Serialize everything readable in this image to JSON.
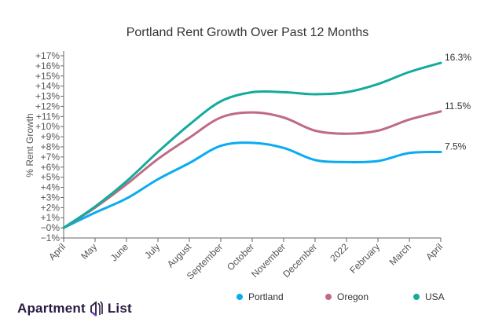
{
  "chart_data": {
    "type": "line",
    "title": "Portland Rent Growth Over Past 12 Months",
    "ylabel": "% Rent Growth",
    "xlabel": "",
    "categories": [
      "April",
      "May",
      "June",
      "July",
      "August",
      "September",
      "October",
      "November",
      "December",
      "2022",
      "February",
      "March",
      "April"
    ],
    "ylim": [
      -1,
      17
    ],
    "yticks": [
      "−1%",
      "−0%",
      "+1%",
      "+2%",
      "+3%",
      "+4%",
      "+5%",
      "+6%",
      "+7%",
      "+8%",
      "+9%",
      "+10%",
      "+11%",
      "+12%",
      "+13%",
      "+14%",
      "+15%",
      "+16%",
      "+17%"
    ],
    "grid": false,
    "legend_position": "bottom",
    "series": [
      {
        "name": "Portland",
        "color": "#0aabf0",
        "values": [
          0,
          1.5,
          2.9,
          4.8,
          6.4,
          8.1,
          8.4,
          7.9,
          6.7,
          6.5,
          6.6,
          7.4,
          7.5
        ],
        "end_label": "7.5%"
      },
      {
        "name": "Oregon",
        "color": "#c06a85",
        "values": [
          0,
          2.0,
          4.3,
          6.8,
          8.9,
          10.9,
          11.4,
          10.9,
          9.6,
          9.3,
          9.6,
          10.7,
          11.5
        ],
        "end_label": "11.5%"
      },
      {
        "name": "USA",
        "color": "#13ab9c",
        "values": [
          0,
          2.1,
          4.6,
          7.5,
          10.2,
          12.5,
          13.4,
          13.4,
          13.2,
          13.4,
          14.2,
          15.4,
          16.3
        ],
        "end_label": "16.3%"
      }
    ]
  },
  "brand": {
    "name_left": "Apartment",
    "name_right": "List"
  }
}
